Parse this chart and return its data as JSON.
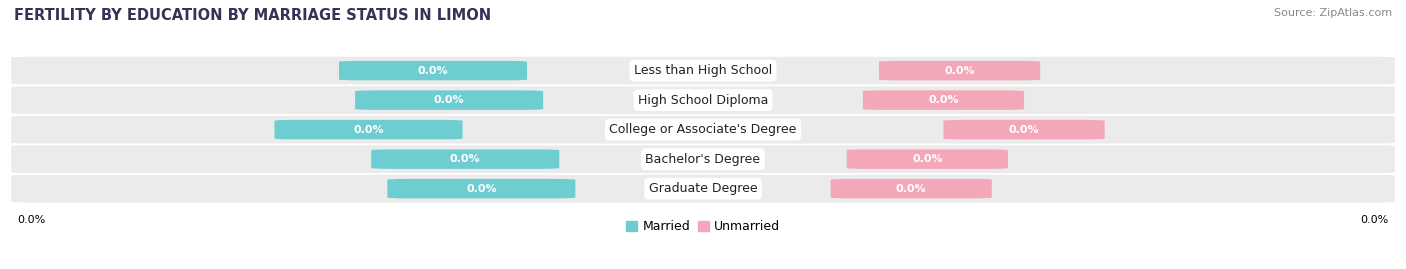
{
  "title": "FERTILITY BY EDUCATION BY MARRIAGE STATUS IN LIMON",
  "source": "Source: ZipAtlas.com",
  "categories": [
    "Less than High School",
    "High School Diploma",
    "College or Associate's Degree",
    "Bachelor's Degree",
    "Graduate Degree"
  ],
  "married_values": [
    0.0,
    0.0,
    0.0,
    0.0,
    0.0
  ],
  "unmarried_values": [
    0.0,
    0.0,
    0.0,
    0.0,
    0.0
  ],
  "married_color": "#6ecdd1",
  "unmarried_color": "#f4a7b9",
  "row_bg_color": "#ebebeb",
  "figsize": [
    14.06,
    2.69
  ],
  "dpi": 100,
  "title_fontsize": 10.5,
  "label_fontsize": 8,
  "category_fontsize": 9,
  "legend_fontsize": 9,
  "source_fontsize": 8
}
